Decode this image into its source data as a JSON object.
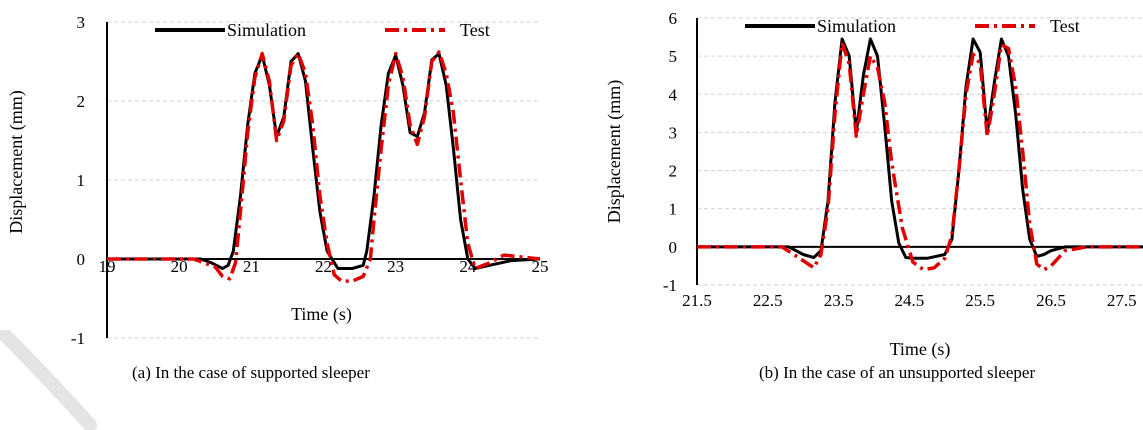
{
  "colors": {
    "simulation": "#000000",
    "test": "#e00000",
    "grid": "#d0d0d0",
    "axis": "#000000"
  },
  "chart_data": [
    {
      "type": "line",
      "title": "",
      "xlabel": "Time (s)",
      "ylabel": "Displacement (mm)",
      "xlim": [
        19,
        25
      ],
      "ylim": [
        -1,
        3
      ],
      "xticks": [
        19,
        20,
        21,
        22,
        23,
        24,
        25
      ],
      "xtick_labels": [
        "19",
        "20",
        "21",
        "22",
        "23",
        "24",
        "25"
      ],
      "yticks": [
        -1,
        0,
        1,
        2,
        3
      ],
      "ytick_labels": [
        "-1",
        "0",
        "1",
        "2",
        "3"
      ],
      "grid": "horizontal",
      "legend": "top",
      "series": [
        {
          "name": "Simulation",
          "style": "solid",
          "x": [
            19,
            20.3,
            20.45,
            20.6,
            20.68,
            20.75,
            20.85,
            20.95,
            21.05,
            21.15,
            21.25,
            21.35,
            21.45,
            21.55,
            21.65,
            21.75,
            21.85,
            21.95,
            22.05,
            22.2,
            22.4,
            22.55,
            22.6,
            22.7,
            22.8,
            22.9,
            23.0,
            23.1,
            23.2,
            23.3,
            23.4,
            23.5,
            23.6,
            23.7,
            23.8,
            23.9,
            24.0,
            24.1,
            24.3,
            24.6,
            25
          ],
          "y": [
            0,
            0,
            -0.05,
            -0.12,
            -0.08,
            0.1,
            0.8,
            1.7,
            2.35,
            2.58,
            2.2,
            1.55,
            1.8,
            2.5,
            2.6,
            2.25,
            1.4,
            0.6,
            0.1,
            -0.12,
            -0.12,
            -0.08,
            0.1,
            0.8,
            1.7,
            2.35,
            2.58,
            2.2,
            1.6,
            1.55,
            1.85,
            2.52,
            2.6,
            2.2,
            1.4,
            0.5,
            0.0,
            -0.12,
            -0.08,
            -0.02,
            0
          ]
        },
        {
          "name": "Test",
          "style": "dash-dot",
          "x": [
            19,
            20.2,
            20.5,
            20.6,
            20.7,
            20.78,
            20.85,
            20.95,
            21.05,
            21.15,
            21.25,
            21.35,
            21.45,
            21.55,
            21.65,
            21.75,
            21.85,
            21.95,
            22.05,
            22.15,
            22.25,
            22.4,
            22.55,
            22.65,
            22.7,
            22.8,
            22.9,
            23.0,
            23.1,
            23.2,
            23.3,
            23.4,
            23.5,
            23.6,
            23.7,
            23.8,
            23.9,
            24.0,
            24.1,
            24.3,
            24.5,
            25
          ],
          "y": [
            0,
            0,
            -0.1,
            -0.22,
            -0.25,
            -0.05,
            0.6,
            1.6,
            2.3,
            2.6,
            2.25,
            1.5,
            1.75,
            2.45,
            2.6,
            2.35,
            1.7,
            0.8,
            0.2,
            -0.2,
            -0.28,
            -0.28,
            -0.22,
            0.0,
            0.5,
            1.4,
            2.2,
            2.6,
            2.3,
            1.7,
            1.45,
            1.8,
            2.5,
            2.62,
            2.35,
            1.85,
            1.0,
            0.2,
            -0.12,
            -0.05,
            0.05,
            0
          ]
        }
      ]
    },
    {
      "type": "line",
      "title": "",
      "xlabel": "Time (s)",
      "ylabel": "Displacement (mm)",
      "xlim": [
        21.5,
        27.8
      ],
      "ylim": [
        -1,
        6
      ],
      "xticks": [
        21.5,
        22.5,
        23.5,
        24.5,
        25.5,
        26.5,
        27.5
      ],
      "xtick_labels": [
        "21.5",
        "22.5",
        "23.5",
        "24.5",
        "25.5",
        "26.5",
        "27.5"
      ],
      "yticks": [
        -1,
        0,
        1,
        2,
        3,
        4,
        5,
        6
      ],
      "ytick_labels": [
        "-1",
        "0",
        "1",
        "2",
        "3",
        "4",
        "5",
        "6"
      ],
      "grid": "horizontal",
      "legend": "top",
      "series": [
        {
          "name": "Simulation",
          "style": "solid",
          "x": [
            21.5,
            22.8,
            23.0,
            23.15,
            23.25,
            23.35,
            23.45,
            23.55,
            23.65,
            23.75,
            23.85,
            23.95,
            24.05,
            24.15,
            24.25,
            24.35,
            24.45,
            24.55,
            24.75,
            25.0,
            25.1,
            25.2,
            25.3,
            25.4,
            25.5,
            25.6,
            25.7,
            25.8,
            25.9,
            26.0,
            26.1,
            26.2,
            26.3,
            26.4,
            26.5,
            26.7,
            27.0,
            27.8
          ],
          "y": [
            0,
            0,
            -0.2,
            -0.28,
            -0.1,
            1.2,
            3.8,
            5.45,
            5.0,
            3.0,
            4.5,
            5.45,
            5.0,
            3.2,
            1.2,
            0.1,
            -0.28,
            -0.3,
            -0.3,
            -0.2,
            0.2,
            2.0,
            4.2,
            5.45,
            5.1,
            3.0,
            4.3,
            5.45,
            5.0,
            3.5,
            1.5,
            0.2,
            -0.25,
            -0.2,
            -0.1,
            0,
            0,
            0
          ]
        },
        {
          "name": "Test",
          "style": "dash-dot",
          "x": [
            21.5,
            22.7,
            22.95,
            23.15,
            23.25,
            23.35,
            23.45,
            23.55,
            23.65,
            23.75,
            23.85,
            23.95,
            24.05,
            24.15,
            24.25,
            24.4,
            24.55,
            24.7,
            24.85,
            25.0,
            25.1,
            25.2,
            25.3,
            25.4,
            25.5,
            25.6,
            25.7,
            25.8,
            25.9,
            26.0,
            26.1,
            26.2,
            26.3,
            26.4,
            26.5,
            26.7,
            27.0,
            27.8
          ],
          "y": [
            0,
            0,
            -0.3,
            -0.55,
            -0.2,
            1.0,
            3.5,
            5.35,
            4.8,
            2.9,
            4.0,
            5.0,
            4.7,
            3.8,
            2.2,
            0.5,
            -0.4,
            -0.6,
            -0.55,
            -0.3,
            0.3,
            2.0,
            4.0,
            5.05,
            4.8,
            2.9,
            4.0,
            5.3,
            5.2,
            4.2,
            2.5,
            0.6,
            -0.45,
            -0.6,
            -0.5,
            -0.1,
            0,
            0
          ]
        }
      ]
    }
  ],
  "captions": {
    "a": "(a) In the case of supported sleeper",
    "b": "(b) In the case of an unsupported sleeper"
  }
}
